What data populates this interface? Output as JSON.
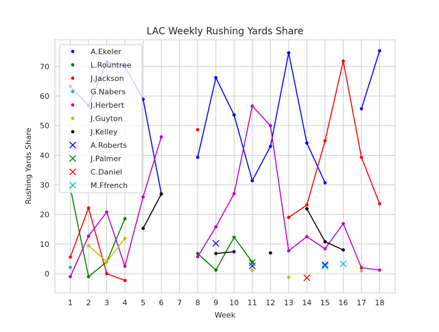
{
  "chart_data": {
    "type": "line",
    "title": "LAC Weekly Rushing Yards Share",
    "xlabel": "Week",
    "ylabel": "Rushing Yards Share",
    "x_ticks": [
      1,
      2,
      3,
      4,
      5,
      6,
      7,
      8,
      9,
      10,
      11,
      12,
      13,
      14,
      15,
      16,
      17,
      18
    ],
    "y_ticks": [
      0,
      10,
      20,
      30,
      40,
      50,
      60,
      70
    ],
    "xlim": [
      0.15,
      18.85
    ],
    "ylim": [
      -6.5,
      79
    ],
    "grid": true,
    "legend_position": "top-left",
    "series": [
      {
        "name": "A.Ekeler",
        "color": "#0000ff",
        "marker": "dot",
        "points": [
          [
            1,
            63.3
          ],
          [
            2,
            56.7
          ],
          [
            3,
            71.5
          ],
          [
            4,
            70.0
          ],
          [
            5,
            58.9
          ],
          [
            6,
            27.0
          ],
          [
            8,
            39.3
          ],
          [
            9,
            66.2
          ],
          [
            10,
            53.6
          ],
          [
            11,
            31.4
          ],
          [
            12,
            43.0
          ],
          [
            13,
            74.6
          ],
          [
            14,
            44.1
          ],
          [
            15,
            30.7
          ],
          [
            17,
            55.7
          ],
          [
            18,
            75.3
          ]
        ]
      },
      {
        "name": "L.Rountree",
        "color": "#008000",
        "marker": "dot",
        "points": [
          [
            1,
            29.0
          ],
          [
            2,
            -1.0
          ],
          [
            3,
            4.0
          ],
          [
            4,
            18.6
          ],
          [
            8,
            6.8
          ],
          [
            9,
            1.2
          ],
          [
            10,
            12.3
          ],
          [
            11,
            3.9
          ]
        ]
      },
      {
        "name": "J.Jackson",
        "color": "#ff0000",
        "marker": "dot",
        "points": [
          [
            1,
            5.6
          ],
          [
            2,
            22.2
          ],
          [
            3,
            0.0
          ],
          [
            4,
            -2.3
          ],
          [
            8,
            48.6
          ],
          [
            13,
            19.0
          ],
          [
            14,
            23.2
          ],
          [
            15,
            44.9
          ],
          [
            16,
            71.8
          ],
          [
            17,
            39.3
          ],
          [
            18,
            23.6
          ]
        ]
      },
      {
        "name": "G.Nabers",
        "color": "#00bfbf",
        "marker": "dot",
        "points": [
          [
            1,
            2.1
          ]
        ]
      },
      {
        "name": "J.Herbert",
        "color": "#bf00bf",
        "marker": "dot",
        "points": [
          [
            1,
            -1.0
          ],
          [
            2,
            12.7
          ],
          [
            3,
            20.8
          ],
          [
            4,
            2.5
          ],
          [
            5,
            25.9
          ],
          [
            6,
            46.2
          ],
          [
            8,
            5.7
          ],
          [
            9,
            15.8
          ],
          [
            10,
            27.0
          ],
          [
            11,
            56.6
          ],
          [
            12,
            50.0
          ],
          [
            13,
            7.7
          ],
          [
            14,
            12.5
          ],
          [
            15,
            8.4
          ],
          [
            16,
            16.9
          ],
          [
            17,
            2.0
          ],
          [
            18,
            1.2
          ]
        ]
      },
      {
        "name": "J.Guyton",
        "color": "#bfbf00",
        "marker": "dot",
        "points": [
          [
            2,
            9.5
          ],
          [
            3,
            4.0
          ],
          [
            4,
            11.9
          ],
          [
            11,
            1.1
          ],
          [
            13,
            -1.2
          ],
          [
            17,
            1.0
          ]
        ]
      },
      {
        "name": "J.Kelley",
        "color": "#000000",
        "marker": "dot",
        "points": [
          [
            5,
            15.3
          ],
          [
            6,
            26.9
          ],
          [
            9,
            6.8
          ],
          [
            10,
            7.4
          ],
          [
            12,
            7.0
          ],
          [
            14,
            21.9
          ],
          [
            15,
            10.8
          ],
          [
            16,
            8.0
          ]
        ]
      },
      {
        "name": "A.Roberts",
        "color": "#0000ff",
        "marker": "x",
        "points": [
          [
            9,
            10.2
          ],
          [
            11,
            2.6
          ],
          [
            15,
            3.0
          ]
        ]
      },
      {
        "name": "J.Palmer",
        "color": "#008000",
        "marker": "x",
        "points": [
          [
            11,
            3.7
          ]
        ]
      },
      {
        "name": "C.Daniel",
        "color": "#ff0000",
        "marker": "x",
        "points": [
          [
            14,
            -1.4
          ]
        ]
      },
      {
        "name": "M.Ffrench",
        "color": "#00bfbf",
        "marker": "x",
        "points": [
          [
            15,
            2.5
          ],
          [
            16,
            3.3
          ]
        ]
      }
    ]
  }
}
